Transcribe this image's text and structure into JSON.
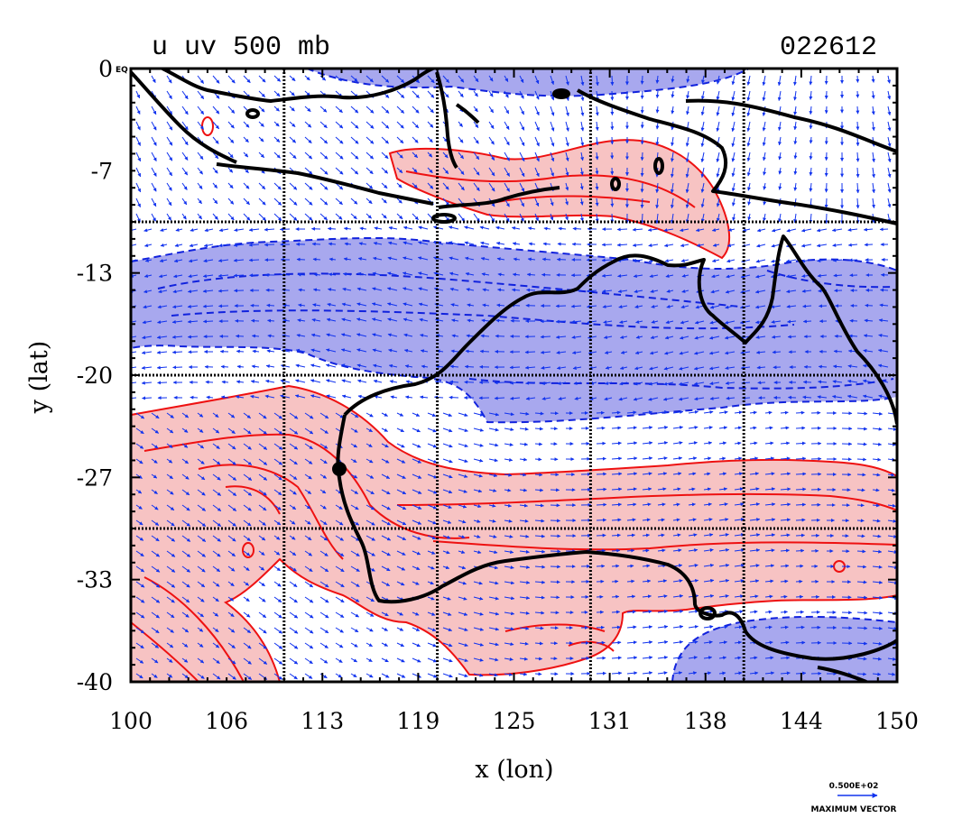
{
  "title": {
    "left": "u uv 500 mb",
    "right": "022612"
  },
  "x_axis": {
    "label": "x (lon)",
    "ticks": [
      "100",
      "106",
      "113",
      "119",
      "125",
      "131",
      "138",
      "144",
      "150"
    ]
  },
  "y_axis": {
    "label": "y (lat)",
    "ticks": [
      "0",
      "-7",
      "-13",
      "-20",
      "-27",
      "-33",
      "-40"
    ],
    "zero_suffix": "EQ"
  },
  "reference_vector": {
    "value": "0.500E+02",
    "label": "MAXIMUM VECTOR"
  },
  "colors": {
    "positive_fill": "#f7c3c3",
    "negative_fill": "#a8a8ee",
    "positive_contour": "#ee1111",
    "negative_contour": "#1122dd",
    "vectors": "#1133ee",
    "coastline": "#000000"
  },
  "map_extent": {
    "lon": [
      100,
      150
    ],
    "lat": [
      -40,
      0
    ]
  },
  "grid_lines": {
    "lon": [
      110,
      120,
      130,
      140
    ],
    "lat": [
      -10,
      -20,
      -30
    ]
  }
}
